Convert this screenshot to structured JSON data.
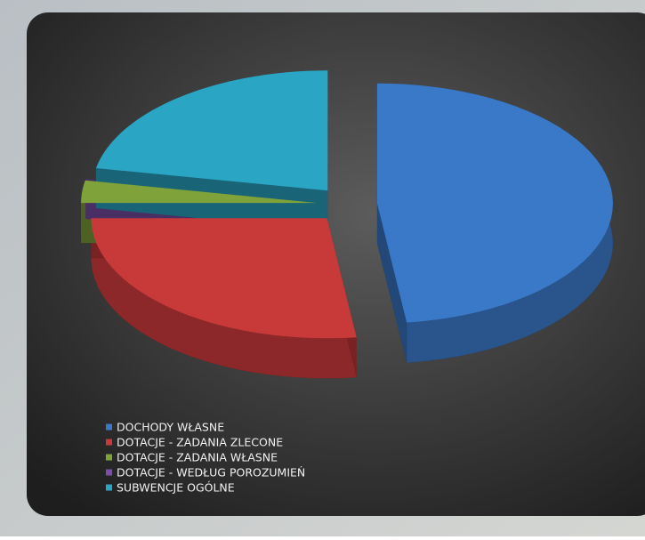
{
  "chart_data": {
    "type": "pie",
    "categories": [
      "DOCHODY WŁASNE",
      "DOTACJE - ZADANIA ZLECONE",
      "DOTACJE - ZADANIA WŁASNE",
      "DOTACJE - WEDŁUG POROZUMIEŃ",
      "SUBWENCJE OGÓLNE"
    ],
    "values": [
      48,
      27,
      3,
      0,
      22
    ],
    "colors": [
      "#3a78c8",
      "#c8393a",
      "#7fa23a",
      "#7b4fa8",
      "#2aa6c4"
    ]
  }
}
